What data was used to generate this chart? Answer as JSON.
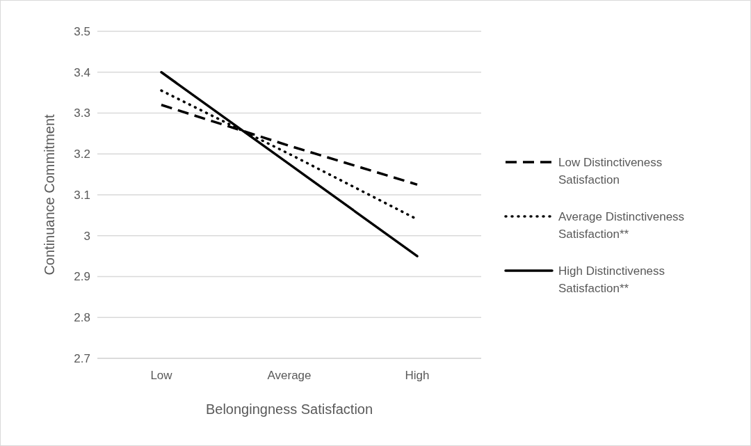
{
  "chart_data": {
    "type": "line",
    "xlabel": "Belongingness Satisfaction",
    "ylabel": "Continuance Commitment",
    "categories": [
      "Low",
      "Average",
      "High"
    ],
    "series": [
      {
        "name": "Low Distinctiveness Satisfaction",
        "color": "#000000",
        "line_style": "dashed",
        "values": [
          3.32,
          3.22,
          3.125
        ]
      },
      {
        "name": "Average Distinctiveness Satisfaction**",
        "color": "#000000",
        "line_style": "dotted",
        "values": [
          3.355,
          3.2,
          3.04
        ]
      },
      {
        "name": "High Distinctiveness Satisfaction**",
        "color": "#000000",
        "line_style": "solid",
        "values": [
          3.4,
          3.175,
          2.95
        ]
      }
    ],
    "ylim": [
      2.7,
      3.5
    ],
    "yticks": [
      2.7,
      2.8,
      2.9,
      3,
      3.1,
      3.2,
      3.3,
      3.4,
      3.5
    ],
    "grid": "y",
    "legend": "right",
    "marker": "none"
  }
}
